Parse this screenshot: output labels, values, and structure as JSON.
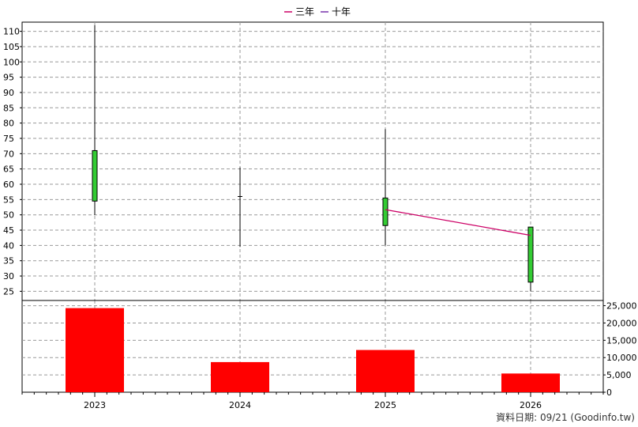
{
  "chart_data": {
    "type": "candlestick",
    "legend": [
      {
        "name": "三年",
        "color": "#cc0066"
      },
      {
        "name": "十年",
        "color": "#7733aa"
      }
    ],
    "categories": [
      "2023",
      "2024",
      "2025",
      "2026"
    ],
    "price": {
      "ylim": [
        22,
        113
      ],
      "ticks": [
        25,
        30,
        35,
        40,
        45,
        50,
        55,
        60,
        65,
        70,
        75,
        80,
        85,
        90,
        95,
        100,
        105,
        110
      ],
      "candles": [
        {
          "year": "2023",
          "open": 54.5,
          "high": 112,
          "low": 50,
          "close": 71,
          "color": "#33cc33"
        },
        {
          "year": "2024",
          "open": 56,
          "high": 65.5,
          "low": 39.5,
          "close": 56,
          "color": "#33cc33"
        },
        {
          "year": "2025",
          "open": 46.5,
          "high": 78,
          "low": 40,
          "close": 55.5,
          "color": "#33cc33"
        },
        {
          "year": "2026",
          "open": 28,
          "high": 46,
          "low": 25,
          "close": 46,
          "color": "#33cc33"
        }
      ],
      "series": [
        {
          "name": "三年",
          "color": "#cc0066",
          "points": [
            {
              "year": "2025",
              "value": 51.7
            },
            {
              "year": "2026",
              "value": 43.3
            }
          ]
        }
      ]
    },
    "volume": {
      "ylim": [
        0,
        26500
      ],
      "ticks": [
        0,
        5000,
        10000,
        15000,
        20000,
        25000
      ],
      "tick_labels": [
        "0",
        "5,000",
        "10,000",
        "15,000",
        "20,000",
        "25,000"
      ],
      "values": [
        24300,
        8700,
        12200,
        5400
      ],
      "color": "#ff0000"
    },
    "grid": true
  },
  "footer": "資料日期: 09/21  (Goodinfo.tw)"
}
